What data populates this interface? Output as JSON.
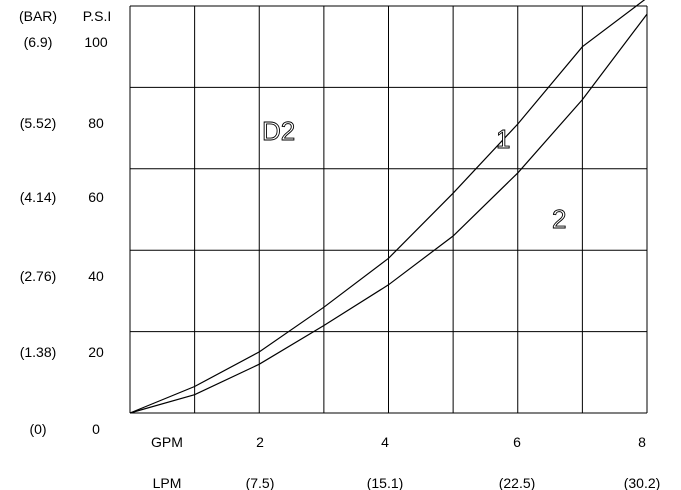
{
  "chart_data": {
    "type": "line",
    "panel_label": "D2",
    "y_headers": {
      "bar": "(BAR)",
      "psi": "P.S.I"
    },
    "y_ticks_psi": [
      "100",
      "80",
      "60",
      "40",
      "20",
      "0"
    ],
    "y_ticks_bar": [
      "(6.9)",
      "(5.52)",
      "(4.14)",
      "(2.76)",
      "(1.38)",
      "(0)"
    ],
    "x_headers": {
      "gpm": "GPM",
      "lpm": "LPM"
    },
    "x_ticks_gpm": [
      "2",
      "4",
      "6",
      "8"
    ],
    "x_ticks_lpm": [
      "(7.5)",
      "(15.1)",
      "(22.5)",
      "(30.2)"
    ],
    "xlim": [
      0,
      8
    ],
    "ylim": [
      0,
      100
    ],
    "grid": true,
    "series": [
      {
        "name": "1",
        "x": [
          0,
          1,
          2,
          3,
          4,
          5,
          6,
          7,
          8
        ],
        "y": [
          0,
          6.5,
          15,
          26,
          38,
          54,
          71,
          90,
          102
        ]
      },
      {
        "name": "2",
        "x": [
          0,
          1,
          2,
          3,
          4,
          5,
          6,
          7,
          8
        ],
        "y": [
          0,
          4.5,
          12,
          21.5,
          31.5,
          43.5,
          59,
          77,
          98
        ]
      }
    ]
  }
}
